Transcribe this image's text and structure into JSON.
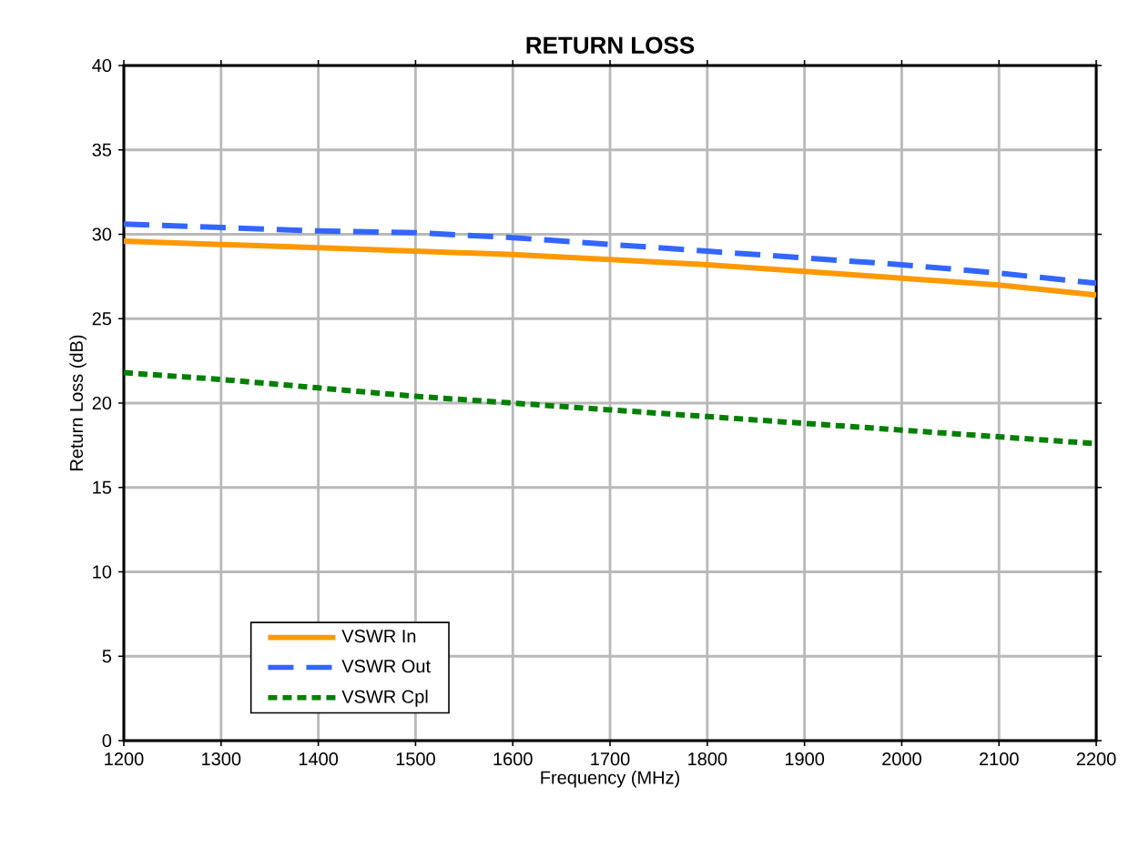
{
  "chart_data": {
    "type": "line",
    "title": "RETURN LOSS",
    "xlabel": "Frequency (MHz)",
    "ylabel": "Return Loss (dB)",
    "x": [
      1200,
      1300,
      1400,
      1500,
      1600,
      1700,
      1800,
      1900,
      2000,
      2100,
      2200
    ],
    "series": [
      {
        "name": "VSWR In",
        "color": "#ff9900",
        "line_style": "solid",
        "values": [
          29.6,
          29.4,
          29.2,
          29.0,
          28.8,
          28.5,
          28.2,
          27.8,
          27.4,
          27.0,
          26.4
        ]
      },
      {
        "name": "VSWR Out",
        "color": "#3366ff",
        "line_style": "dashed",
        "values": [
          30.6,
          30.4,
          30.2,
          30.1,
          29.8,
          29.4,
          29.0,
          28.6,
          28.2,
          27.7,
          27.1
        ]
      },
      {
        "name": "VSWR Cpl",
        "color": "#008000",
        "line_style": "dotted",
        "values": [
          21.8,
          21.4,
          20.9,
          20.4,
          20.0,
          19.6,
          19.2,
          18.8,
          18.4,
          18.0,
          17.6
        ]
      }
    ],
    "xlim": [
      1200,
      2200
    ],
    "xticks": [
      1200,
      1300,
      1400,
      1500,
      1600,
      1700,
      1800,
      1900,
      2000,
      2100,
      2200
    ],
    "ylim": [
      0,
      40
    ],
    "yticks": [
      0,
      5,
      10,
      15,
      20,
      25,
      30,
      35,
      40
    ],
    "grid": true,
    "legend": "bottom left",
    "marker": "none"
  }
}
